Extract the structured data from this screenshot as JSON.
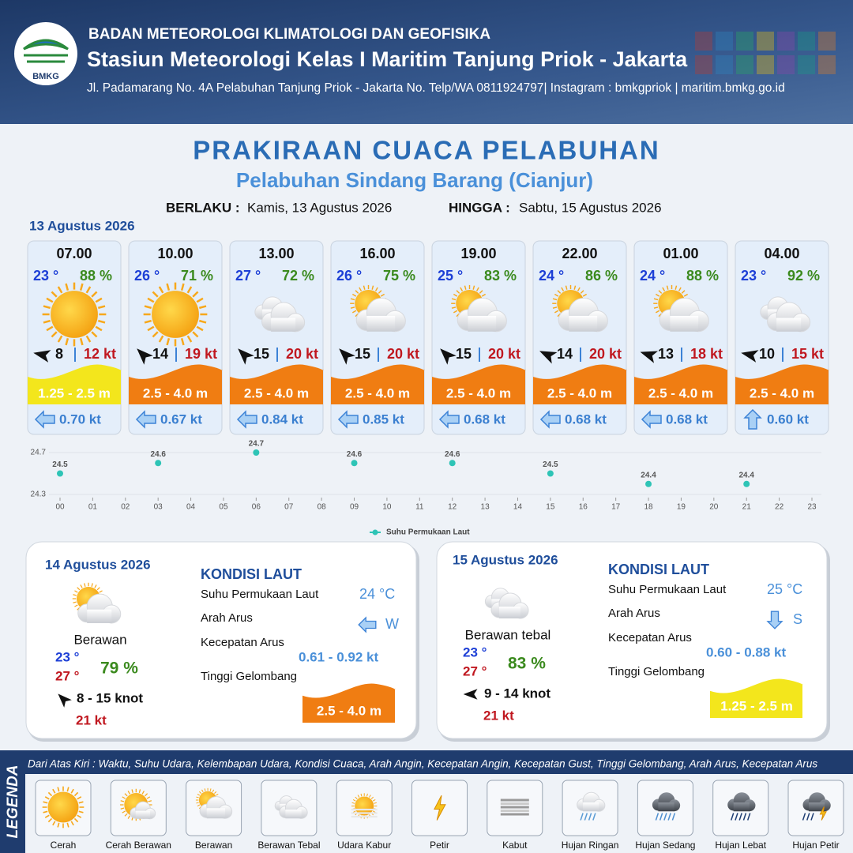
{
  "header": {
    "logo": "BMKG",
    "org": "BADAN METEOROLOGI KLIMATOLOGI DAN GEOFISIKA",
    "station": "Stasiun Meteorologi Kelas I Maritim Tanjung Priok - Jakarta",
    "address": "Jl. Padamarang No. 4A Pelabuhan Tanjung Priok - Jakarta No. Telp/WA 0811924797| Instagram : bmkgpriok | maritim.bmkg.go.id"
  },
  "title": "PRAKIRAAN CUACA PELABUHAN",
  "subtitle": "Pelabuhan Sindang Barang (Cianjur)",
  "validity": {
    "from_label": "BERLAKU :",
    "from": "Kamis, 13 Agustus 2026",
    "to_label": "HINGGA :",
    "to": "Sabtu, 15 Agustus 2026"
  },
  "day1": {
    "date": "13 Agustus 2026",
    "hours": [
      {
        "time": "07.00",
        "temp": "23 °",
        "humidity": "88 %",
        "wind": "8",
        "gust": "12 kt",
        "wave": "1.25 - 2.5 m",
        "wave_color": "#f3e61c",
        "current": "0.70 kt"
      },
      {
        "time": "10.00",
        "temp": "26 °",
        "humidity": "71 %",
        "wind": "14",
        "gust": "19 kt",
        "wave": "2.5 - 4.0 m",
        "wave_color": "#f07d12",
        "current": "0.67 kt"
      },
      {
        "time": "13.00",
        "temp": "27 °",
        "humidity": "72 %",
        "wind": "15",
        "gust": "20 kt",
        "wave": "2.5 - 4.0 m",
        "wave_color": "#f07d12",
        "current": "0.84 kt"
      },
      {
        "time": "16.00",
        "temp": "26 °",
        "humidity": "75 %",
        "wind": "15",
        "gust": "20 kt",
        "wave": "2.5 - 4.0 m",
        "wave_color": "#f07d12",
        "current": "0.85 kt"
      },
      {
        "time": "19.00",
        "temp": "25 °",
        "humidity": "83 %",
        "wind": "15",
        "gust": "20 kt",
        "wave": "2.5 - 4.0 m",
        "wave_color": "#f07d12",
        "current": "0.68 kt"
      },
      {
        "time": "22.00",
        "temp": "24 °",
        "humidity": "86 %",
        "wind": "14",
        "gust": "20 kt",
        "wave": "2.5 - 4.0 m",
        "wave_color": "#f07d12",
        "current": "0.68 kt"
      },
      {
        "time": "01.00",
        "temp": "24 °",
        "humidity": "88 %",
        "wind": "13",
        "gust": "18 kt",
        "wave": "2.5 - 4.0 m",
        "wave_color": "#f07d12",
        "current": "0.68 kt"
      },
      {
        "time": "04.00",
        "temp": "23 °",
        "humidity": "92 %",
        "wind": "10",
        "gust": "15 kt",
        "wave": "2.5 - 4.0 m",
        "wave_color": "#f07d12",
        "current": "0.60 kt"
      }
    ]
  },
  "chart_data": {
    "type": "scatter",
    "color": "#2ec4b6",
    "legend": "Suhu Permukaan Laut",
    "x": [
      0,
      3,
      6,
      9,
      12,
      15,
      18,
      21
    ],
    "values": [
      24.5,
      24.6,
      24.7,
      24.6,
      24.6,
      24.5,
      24.4,
      24.4
    ],
    "xlim": [
      0,
      23
    ],
    "xticks": [
      {
        "value": 0,
        "label": "00"
      },
      {
        "value": 1,
        "label": "01"
      },
      {
        "value": 2,
        "label": "02"
      },
      {
        "value": 3,
        "label": "03"
      },
      {
        "value": 4,
        "label": "04"
      },
      {
        "value": 5,
        "label": "05"
      },
      {
        "value": 6,
        "label": "06"
      },
      {
        "value": 7,
        "label": "07"
      },
      {
        "value": 8,
        "label": "08"
      },
      {
        "value": 9,
        "label": "09"
      },
      10,
      11,
      12,
      13,
      14,
      15,
      16,
      17,
      18,
      19,
      20,
      21,
      22,
      23
    ],
    "ylim": [
      24.3,
      24.7
    ],
    "yticks": [
      24.3,
      24.7
    ]
  },
  "days": [
    {
      "date": "14 Agustus 2026",
      "condition": "Berawan",
      "temp_min": "23 °",
      "temp_max": "27 °",
      "humidity": "79 %",
      "wind": "8  - 15 knot",
      "gust": "21 kt",
      "section": "KONDISI LAUT",
      "sst_label": "Suhu Permukaan Laut",
      "sst": "24 °C",
      "dir_label": "Arah Arus",
      "dir": "W",
      "speed_label": "Kecepatan Arus",
      "speed": "0.61  - 0.92 kt",
      "wave_label": "Tinggi Gelombang",
      "wave": "2.5 - 4.0 m",
      "wave_color": "#f07d12"
    },
    {
      "date": "15 Agustus 2026",
      "condition": "Berawan tebal",
      "temp_min": "23 °",
      "temp_max": "27 °",
      "humidity": "83 %",
      "wind": "9  - 14 knot",
      "gust": "21 kt",
      "section": "KONDISI LAUT",
      "sst_label": "Suhu Permukaan Laut",
      "sst": "25 °C",
      "dir_label": "Arah Arus",
      "dir": "S",
      "speed_label": "Kecepatan Arus",
      "speed": "0.60 - 0.88 kt",
      "wave_label": "Tinggi Gelombang",
      "wave": "1.25 - 2.5 m",
      "wave_color": "#f3e61c"
    }
  ],
  "legend": {
    "title": "LEGENDA",
    "description": "Dari Atas Kiri : Waktu, Suhu Udara, Kelembapan Udara, Kondisi Cuaca, Arah Angin, Kecepatan Angin, Kecepatan Gust, Tinggi Gelombang, Arah Arus, Kecepatan Arus",
    "items": [
      "Cerah",
      "Cerah Berawan",
      "Berawan",
      "Berawan Tebal",
      "Udara Kabur",
      "Petir",
      "Kabut",
      "Hujan Ringan",
      "Hujan Sedang",
      "Hujan Lebat",
      "Hujan Petir"
    ]
  }
}
